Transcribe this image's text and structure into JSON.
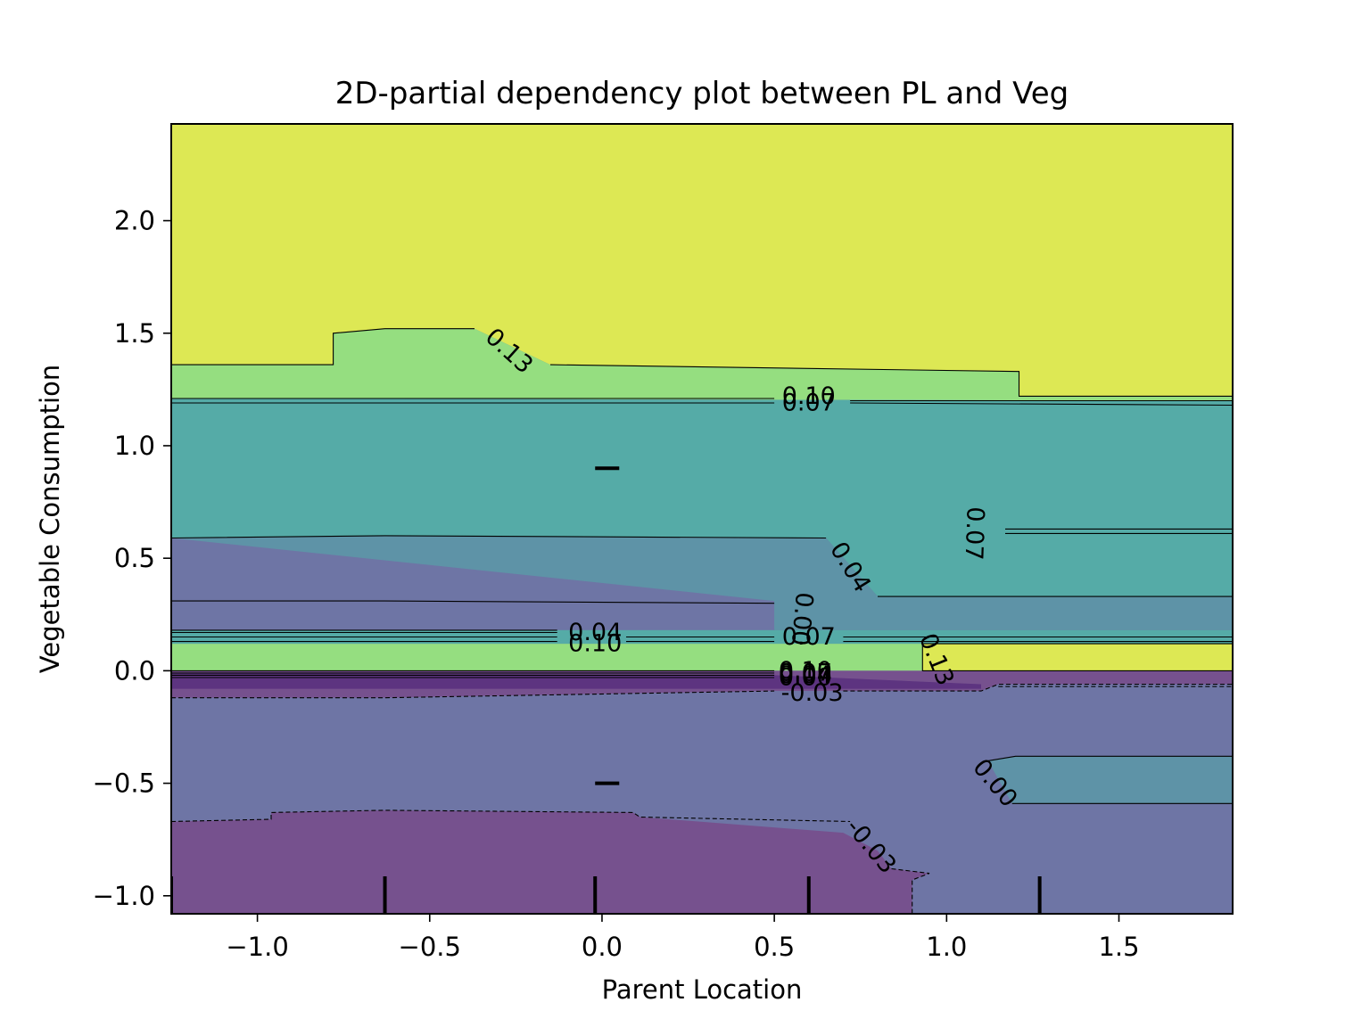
{
  "chart_data": {
    "type": "contour",
    "title": "2D-partial dependency plot between PL and Veg",
    "xlabel": "Parent Location",
    "ylabel": "Vegetable Consumption",
    "xlim": [
      -1.25,
      1.83
    ],
    "ylim": [
      -1.08,
      2.43
    ],
    "x_ticks": [
      -1.0,
      -0.5,
      0.0,
      0.5,
      1.0,
      1.5
    ],
    "x_tick_labels": [
      "−1.0",
      "−0.5",
      "0.0",
      "0.5",
      "1.0",
      "1.5"
    ],
    "y_ticks": [
      -1.0,
      -0.5,
      0.0,
      0.5,
      1.0,
      1.5,
      2.0
    ],
    "y_tick_labels": [
      "−1.0",
      "−0.5",
      "0.0",
      "0.5",
      "1.0",
      "1.5",
      "2.0"
    ],
    "levels": [
      -0.03,
      0.0,
      0.04,
      0.07,
      0.1,
      0.13
    ],
    "level_colors": {
      "-0.06": "#5d3480",
      "-0.03": "#76518e",
      "0.00": "#6e75a5",
      "0.04": "#5e93a7",
      "0.07": "#55aba7",
      "0.10": "#95de80",
      "0.13": "#dde854"
    },
    "regions": [
      {
        "level": 0.13,
        "points": [
          [
            -1.25,
            2.43
          ],
          [
            1.83,
            2.43
          ],
          [
            1.83,
            1.22
          ],
          [
            1.21,
            1.22
          ],
          [
            1.21,
            1.33
          ],
          [
            -0.15,
            1.36
          ],
          [
            -0.37,
            1.52
          ],
          [
            -0.63,
            1.52
          ],
          [
            -0.78,
            1.5
          ],
          [
            -0.78,
            1.36
          ],
          [
            -1.25,
            1.36
          ]
        ]
      },
      {
        "level": 0.1,
        "points": [
          [
            -1.25,
            1.36
          ],
          [
            -0.78,
            1.36
          ],
          [
            -0.78,
            1.5
          ],
          [
            -0.63,
            1.52
          ],
          [
            -0.37,
            1.52
          ],
          [
            -0.15,
            1.36
          ],
          [
            1.21,
            1.33
          ],
          [
            1.21,
            1.22
          ],
          [
            1.83,
            1.22
          ],
          [
            1.83,
            1.2
          ],
          [
            -1.25,
            1.21
          ]
        ]
      },
      {
        "level": 0.07,
        "points": [
          [
            -1.25,
            1.21
          ],
          [
            1.83,
            1.2
          ],
          [
            1.83,
            0.33
          ],
          [
            0.8,
            0.33
          ],
          [
            0.65,
            0.59
          ],
          [
            -0.63,
            0.6
          ],
          [
            -1.25,
            0.59
          ]
        ]
      },
      {
        "level": 0.04,
        "points": [
          [
            -1.25,
            0.59
          ],
          [
            -0.63,
            0.6
          ],
          [
            0.65,
            0.59
          ],
          [
            0.8,
            0.33
          ],
          [
            1.83,
            0.33
          ],
          [
            1.83,
            0.18
          ],
          [
            -1.25,
            0.18
          ],
          [
            -1.25,
            0.31
          ],
          [
            -0.63,
            0.31
          ],
          [
            0.5,
            0.3
          ],
          [
            0.5,
            0.31
          ]
        ]
      },
      {
        "level": 0.0,
        "points": [
          [
            -1.25,
            0.31
          ],
          [
            -0.63,
            0.31
          ],
          [
            0.5,
            0.3
          ],
          [
            0.5,
            0.18
          ],
          [
            -1.25,
            0.18
          ]
        ]
      },
      {
        "level": 0.07,
        "points": [
          [
            -1.25,
            0.18
          ],
          [
            1.83,
            0.18
          ],
          [
            1.83,
            0.12
          ],
          [
            -1.25,
            0.12
          ]
        ]
      },
      {
        "level": 0.1,
        "points": [
          [
            -1.25,
            0.12
          ],
          [
            0.93,
            0.12
          ],
          [
            0.93,
            0.0
          ],
          [
            -1.25,
            0.0
          ]
        ]
      },
      {
        "level": 0.13,
        "points": [
          [
            0.93,
            0.12
          ],
          [
            1.83,
            0.12
          ],
          [
            1.83,
            0.0
          ],
          [
            0.93,
            0.0
          ]
        ]
      },
      {
        "level": -0.03,
        "points": [
          [
            -1.25,
            0.0
          ],
          [
            1.83,
            0.0
          ],
          [
            1.83,
            -0.06
          ],
          [
            1.15,
            -0.06
          ],
          [
            1.1,
            -0.09
          ],
          [
            0.5,
            -0.09
          ],
          [
            -0.63,
            -0.12
          ],
          [
            -1.25,
            -0.12
          ]
        ]
      },
      {
        "level": -0.06,
        "points": [
          [
            -1.25,
            -0.01
          ],
          [
            0.5,
            -0.02
          ],
          [
            1.1,
            -0.06
          ],
          [
            1.1,
            -0.08
          ],
          [
            0.5,
            -0.08
          ],
          [
            -1.25,
            -0.08
          ]
        ]
      },
      {
        "level": 0.0,
        "points": [
          [
            -1.25,
            -0.12
          ],
          [
            -0.63,
            -0.12
          ],
          [
            0.5,
            -0.09
          ],
          [
            1.1,
            -0.09
          ],
          [
            1.15,
            -0.06
          ],
          [
            1.83,
            -0.06
          ],
          [
            1.83,
            -1.08
          ],
          [
            -1.25,
            -1.08
          ]
        ]
      },
      {
        "level": 0.04,
        "points": [
          [
            1.12,
            -0.4
          ],
          [
            1.2,
            -0.38
          ],
          [
            1.83,
            -0.38
          ],
          [
            1.83,
            -0.59
          ],
          [
            1.19,
            -0.59
          ]
        ]
      },
      {
        "level": -0.03,
        "points": [
          [
            -1.25,
            -1.08
          ],
          [
            -1.25,
            -0.67
          ],
          [
            -0.96,
            -0.66
          ],
          [
            -0.96,
            -0.63
          ],
          [
            -0.63,
            -0.62
          ],
          [
            0.09,
            -0.63
          ],
          [
            0.11,
            -0.65
          ],
          [
            0.7,
            -0.72
          ],
          [
            0.8,
            -0.8
          ],
          [
            0.84,
            -0.88
          ],
          [
            0.95,
            -0.9
          ],
          [
            0.9,
            -0.93
          ],
          [
            0.9,
            -1.08
          ]
        ]
      }
    ],
    "contour_lines": [
      {
        "level": 0.13,
        "style": "solid",
        "points": [
          [
            -1.25,
            1.36
          ],
          [
            -0.78,
            1.36
          ],
          [
            -0.78,
            1.5
          ],
          [
            -0.63,
            1.52
          ],
          [
            -0.37,
            1.52
          ]
        ]
      },
      {
        "level": 0.13,
        "style": "solid",
        "points": [
          [
            -0.15,
            1.36
          ],
          [
            1.21,
            1.33
          ],
          [
            1.21,
            1.22
          ],
          [
            1.83,
            1.22
          ]
        ]
      },
      {
        "level": 0.1,
        "style": "solid",
        "points": [
          [
            -1.25,
            1.21
          ],
          [
            0.5,
            1.21
          ]
        ]
      },
      {
        "level": 0.1,
        "style": "solid",
        "points": [
          [
            0.72,
            1.2
          ],
          [
            1.83,
            1.2
          ]
        ]
      },
      {
        "level": 0.07,
        "style": "solid",
        "points": [
          [
            -1.25,
            1.19
          ],
          [
            0.5,
            1.19
          ]
        ]
      },
      {
        "level": 0.07,
        "style": "solid",
        "points": [
          [
            0.72,
            1.19
          ],
          [
            1.83,
            1.18
          ]
        ]
      },
      {
        "level": 0.07,
        "style": "solid",
        "points": [
          [
            1.17,
            0.63
          ],
          [
            1.83,
            0.63
          ]
        ]
      },
      {
        "level": 0.07,
        "style": "solid",
        "points": [
          [
            1.17,
            0.61
          ],
          [
            1.83,
            0.61
          ]
        ]
      },
      {
        "level": 0.04,
        "style": "solid",
        "points": [
          [
            -1.25,
            0.59
          ],
          [
            -0.63,
            0.6
          ],
          [
            0.65,
            0.59
          ]
        ]
      },
      {
        "level": 0.04,
        "style": "solid",
        "points": [
          [
            0.8,
            0.33
          ],
          [
            1.83,
            0.33
          ]
        ]
      },
      {
        "level": 0.0,
        "style": "solid",
        "points": [
          [
            -1.25,
            0.31
          ],
          [
            -0.63,
            0.31
          ],
          [
            0.5,
            0.3
          ]
        ]
      },
      {
        "level": 0.0,
        "style": "solid",
        "points": [
          [
            -1.25,
            0.18
          ],
          [
            -0.13,
            0.18
          ]
        ]
      },
      {
        "level": 0.04,
        "style": "solid",
        "points": [
          [
            -1.25,
            0.17
          ],
          [
            -0.13,
            0.17
          ]
        ]
      },
      {
        "level": 0.07,
        "style": "solid",
        "points": [
          [
            -1.25,
            0.15
          ],
          [
            -0.13,
            0.15
          ]
        ]
      },
      {
        "level": 0.1,
        "style": "solid",
        "points": [
          [
            -1.25,
            0.13
          ],
          [
            -0.13,
            0.13
          ]
        ]
      },
      {
        "level": 0.07,
        "style": "solid",
        "points": [
          [
            0.07,
            0.15
          ],
          [
            0.5,
            0.15
          ]
        ]
      },
      {
        "level": 0.07,
        "style": "solid",
        "points": [
          [
            0.7,
            0.15
          ],
          [
            1.83,
            0.15
          ]
        ]
      },
      {
        "level": 0.1,
        "style": "solid",
        "points": [
          [
            0.07,
            0.13
          ],
          [
            0.5,
            0.13
          ]
        ]
      },
      {
        "level": 0.1,
        "style": "solid",
        "points": [
          [
            0.7,
            0.13
          ],
          [
            1.83,
            0.13
          ]
        ]
      },
      {
        "level": 0.13,
        "style": "solid",
        "points": [
          [
            0.93,
            0.12
          ],
          [
            1.83,
            0.12
          ]
        ]
      },
      {
        "level": 0.13,
        "style": "solid",
        "points": [
          [
            0.93,
            0.12
          ],
          [
            0.93,
            0.0
          ],
          [
            1.83,
            0.0
          ]
        ]
      },
      {
        "level": 0.1,
        "style": "solid",
        "points": [
          [
            -1.25,
            0.0
          ],
          [
            0.5,
            0.0
          ]
        ]
      },
      {
        "level": 0.07,
        "style": "solid",
        "points": [
          [
            -1.25,
            -0.01
          ],
          [
            0.5,
            -0.01
          ]
        ]
      },
      {
        "level": 0.04,
        "style": "solid",
        "points": [
          [
            -1.25,
            -0.02
          ],
          [
            0.5,
            -0.02
          ]
        ]
      },
      {
        "level": 0.0,
        "style": "solid",
        "points": [
          [
            -1.25,
            -0.03
          ],
          [
            0.5,
            -0.03
          ]
        ]
      },
      {
        "level": -0.03,
        "style": "dashed",
        "points": [
          [
            -1.25,
            -0.12
          ],
          [
            -0.63,
            -0.12
          ],
          [
            0.5,
            -0.09
          ]
        ]
      },
      {
        "level": -0.03,
        "style": "dashed",
        "points": [
          [
            0.7,
            -0.09
          ],
          [
            1.1,
            -0.09
          ],
          [
            1.15,
            -0.06
          ],
          [
            1.83,
            -0.06
          ]
        ]
      },
      {
        "level": -0.03,
        "style": "dashed",
        "points": [
          [
            1.15,
            -0.07
          ],
          [
            1.83,
            -0.07
          ]
        ]
      },
      {
        "level": 0.0,
        "style": "solid",
        "points": [
          [
            1.12,
            -0.4
          ],
          [
            1.2,
            -0.38
          ],
          [
            1.83,
            -0.38
          ]
        ]
      },
      {
        "level": 0.0,
        "style": "solid",
        "points": [
          [
            1.19,
            -0.59
          ],
          [
            1.83,
            -0.59
          ]
        ]
      },
      {
        "level": -0.03,
        "style": "dashed",
        "points": [
          [
            -1.25,
            -0.67
          ],
          [
            -0.96,
            -0.66
          ],
          [
            -0.96,
            -0.63
          ],
          [
            -0.63,
            -0.62
          ],
          [
            0.09,
            -0.63
          ],
          [
            0.11,
            -0.65
          ],
          [
            0.72,
            -0.67
          ]
        ]
      },
      {
        "level": -0.03,
        "style": "dashed",
        "points": [
          [
            0.84,
            -0.88
          ],
          [
            0.95,
            -0.9
          ],
          [
            0.9,
            -0.93
          ],
          [
            0.9,
            -1.08
          ]
        ]
      }
    ],
    "contour_labels": [
      {
        "text": "0.13",
        "x": -0.27,
        "y": 1.42,
        "rotation": 42
      },
      {
        "text": "0.10",
        "x": 0.6,
        "y": 1.22,
        "rotation": 0
      },
      {
        "text": "0.07",
        "x": 0.6,
        "y": 1.19,
        "rotation": 0
      },
      {
        "text": "0.07",
        "x": 1.08,
        "y": 0.61,
        "rotation": 92
      },
      {
        "text": "0.04",
        "x": 0.72,
        "y": 0.46,
        "rotation": 58
      },
      {
        "text": "0.00",
        "x": 0.58,
        "y": 0.23,
        "rotation": 95
      },
      {
        "text": "0.04",
        "x": -0.02,
        "y": 0.17,
        "rotation": 0
      },
      {
        "text": "0.10",
        "x": -0.02,
        "y": 0.12,
        "rotation": 0
      },
      {
        "text": "0.07",
        "x": 0.6,
        "y": 0.15,
        "rotation": 0
      },
      {
        "text": "0.13",
        "x": 0.97,
        "y": 0.05,
        "rotation": 68
      },
      {
        "text": "0.10",
        "x": 0.59,
        "y": 0.0,
        "rotation": 0
      },
      {
        "text": "0.07",
        "x": 0.59,
        "y": -0.01,
        "rotation": 0
      },
      {
        "text": "0.04",
        "x": 0.59,
        "y": -0.02,
        "rotation": 0
      },
      {
        "text": "0.00",
        "x": 0.59,
        "y": -0.03,
        "rotation": 0
      },
      {
        "text": "-0.03",
        "x": 0.61,
        "y": -0.1,
        "rotation": 0
      },
      {
        "text": "0.00",
        "x": 1.14,
        "y": -0.5,
        "rotation": 50
      },
      {
        "text": "-0.03",
        "x": 0.78,
        "y": -0.78,
        "rotation": 50
      }
    ],
    "rug_x": [
      -1.25,
      -0.63,
      -0.02,
      0.6,
      1.27
    ],
    "rug_y": [
      0.9,
      -0.5
    ],
    "grid": false,
    "legend": "none"
  }
}
